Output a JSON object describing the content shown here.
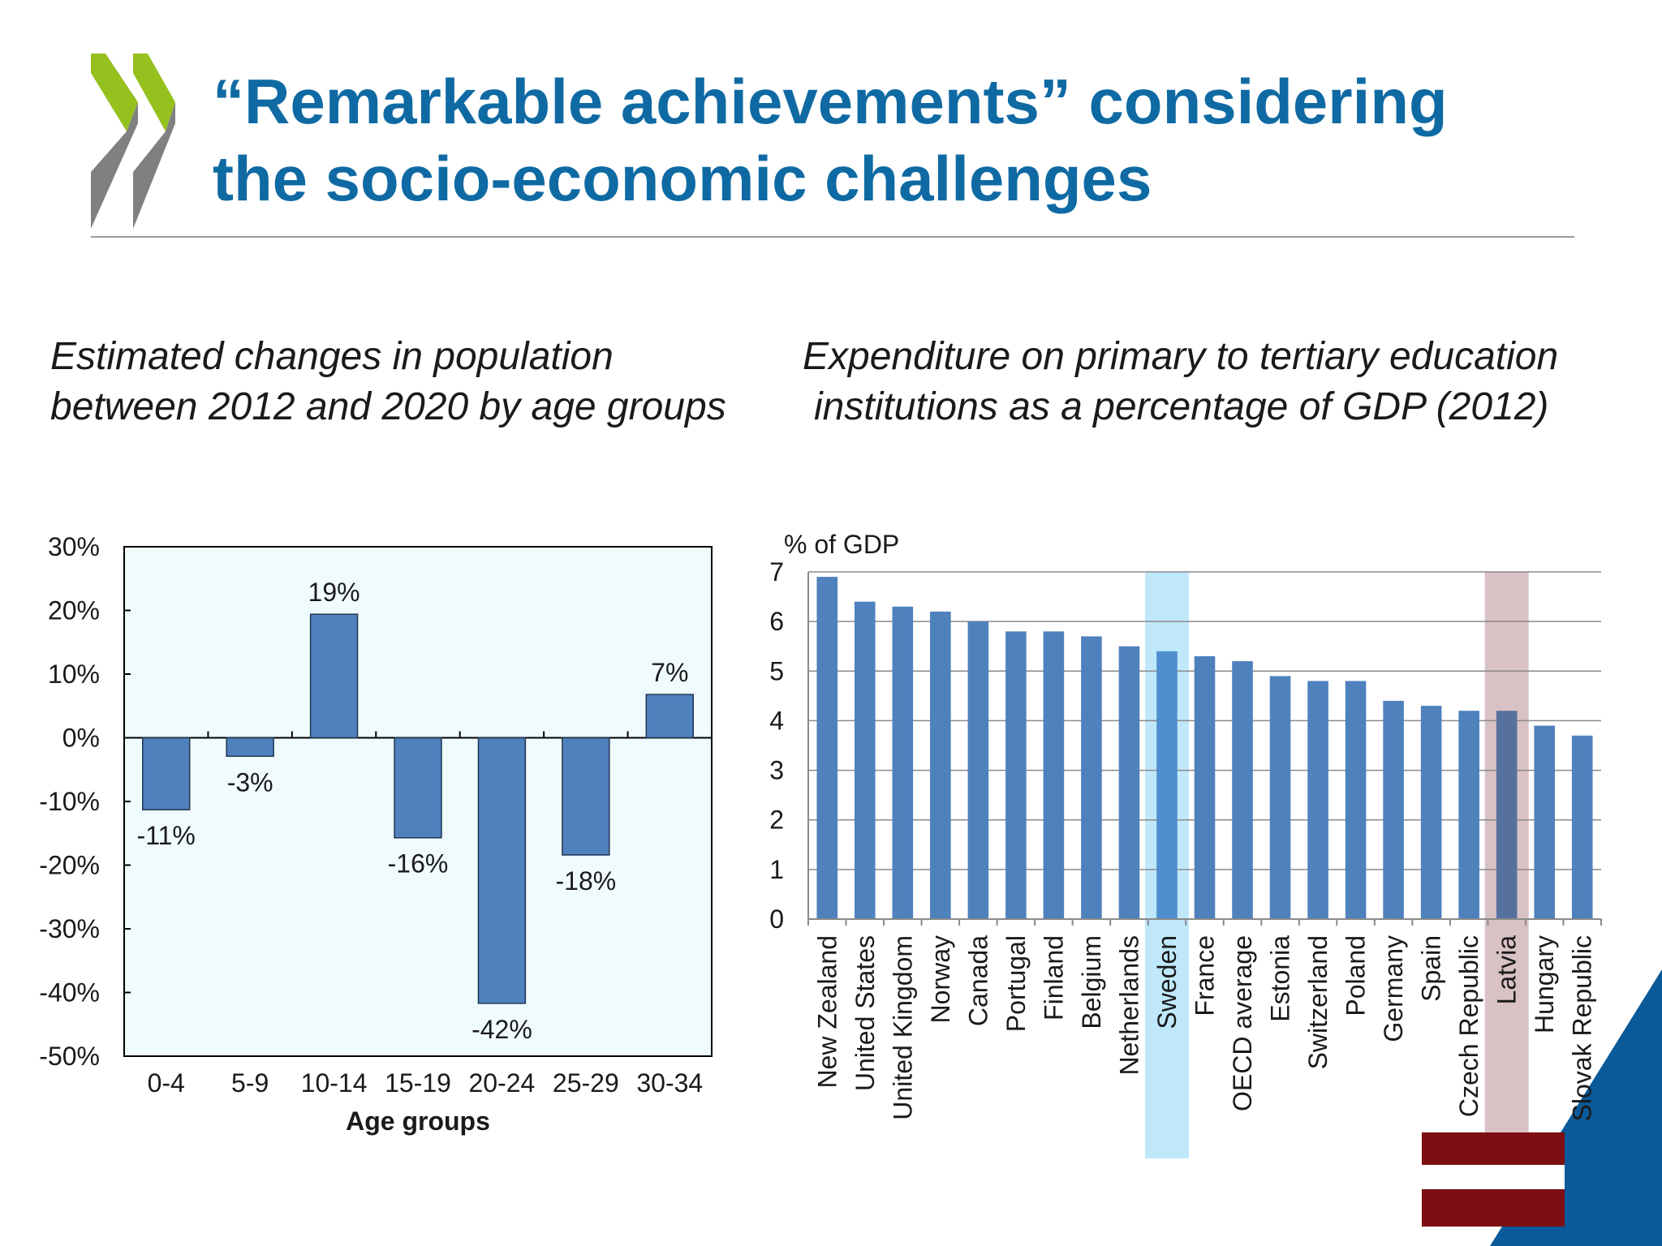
{
  "slide": {
    "title_line1": "“Remarkable achievements” considering",
    "title_line2": "the socio-economic challenges",
    "left_subtitle_line1": "Estimated changes in population",
    "left_subtitle_line2": "between 2012 and 2020 by age groups",
    "right_subtitle_line1": "Expenditure on primary to tertiary education",
    "right_subtitle_line2": "institutions as a percentage of GDP (2012)",
    "logo": "oecd-chevron-logo",
    "flag": "latvia-flag"
  },
  "colors": {
    "title": "#0f6aa3",
    "bar": "#4f81bd",
    "left_plot_bg": "#f0fbfd",
    "highlight_sweden": "#bfe8fb",
    "highlight_latvia": "#d9c2c6",
    "logo_green": "#95c11f",
    "logo_gray": "#808080",
    "flag_red": "#7d0f13",
    "corner_blue": "#0a5a99"
  },
  "chart_data": [
    {
      "type": "bar",
      "title": "",
      "xlabel": "Age groups",
      "ylabel": "",
      "categories": [
        "0-4",
        "5-9",
        "10-14",
        "15-19",
        "20-24",
        "25-29",
        "30-34"
      ],
      "values": [
        -11.3,
        -2.9,
        19.4,
        -15.7,
        -41.7,
        -18.4,
        6.8
      ],
      "data_labels": [
        "-11%",
        "-3%",
        "19%",
        "-16%",
        "-42%",
        "-18%",
        "7%"
      ],
      "ylim": [
        -50,
        30
      ],
      "yticks": [
        30,
        20,
        10,
        0,
        -10,
        -20,
        -30,
        -40,
        -50
      ],
      "ytick_labels": [
        "30%",
        "20%",
        "10%",
        "0%",
        "-10%",
        "-20%",
        "-30%",
        "-40%",
        "-50%"
      ],
      "grid": false,
      "legend": "none"
    },
    {
      "type": "bar",
      "title": "",
      "xlabel": "",
      "ylabel": "% of GDP",
      "categories": [
        "New Zealand",
        "United States",
        "United Kingdom",
        "Norway",
        "Canada",
        "Portugal",
        "Finland",
        "Belgium",
        "Netherlands",
        "Sweden",
        "France",
        "OECD average",
        "Estonia",
        "Switzerland",
        "Poland",
        "Germany",
        "Spain",
        "Czech Republic",
        "Latvia",
        "Hungary",
        "Slovak Republic"
      ],
      "values": [
        6.9,
        6.4,
        6.3,
        6.2,
        6.0,
        5.8,
        5.8,
        5.7,
        5.5,
        5.4,
        5.3,
        5.2,
        4.9,
        4.8,
        4.8,
        4.4,
        4.3,
        4.2,
        4.2,
        3.9,
        3.7
      ],
      "highlighted": [
        "Sweden",
        "Latvia"
      ],
      "ylim": [
        0,
        7
      ],
      "yticks": [
        0,
        1,
        2,
        3,
        4,
        5,
        6,
        7
      ],
      "grid": true,
      "legend": "none"
    }
  ]
}
